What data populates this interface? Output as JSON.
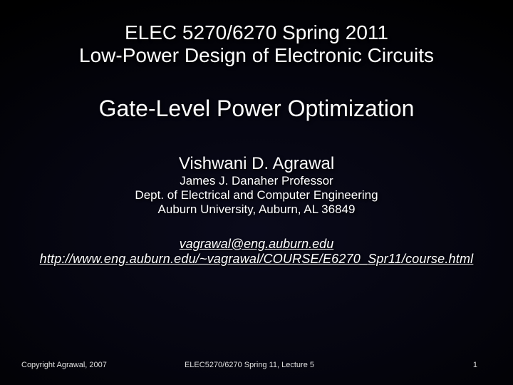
{
  "title": {
    "line1": "ELEC 5270/6270 Spring 2011",
    "line2": "Low-Power Design of Electronic Circuits"
  },
  "subtitle": "Gate-Level Power Optimization",
  "author": {
    "name": "Vishwani D. Agrawal",
    "title": "James J. Danaher Professor",
    "dept": "Dept. of Electrical and Computer Engineering",
    "univ": "Auburn University, Auburn, AL 36849"
  },
  "contact": {
    "email": "vagrawal@eng.auburn.edu",
    "url": "http://www.eng.auburn.edu/~vagrawal/COURSE/E6270_Spr11/course.html"
  },
  "footer": {
    "copyright": "Copyright Agrawal, 2007",
    "center": "ELEC5270/6270 Spring 11, Lecture 5",
    "page": "1"
  },
  "style": {
    "bg_gradient_inner": "#0a0a1a",
    "bg_gradient_mid": "#05050f",
    "bg_gradient_outer": "#000000",
    "text_color": "#ffffff",
    "title_fontsize": 28,
    "subtitle_fontsize": 32,
    "author_fontsize": 24,
    "detail_fontsize": 17,
    "contact_fontsize": 18,
    "footer_fontsize": 11
  }
}
